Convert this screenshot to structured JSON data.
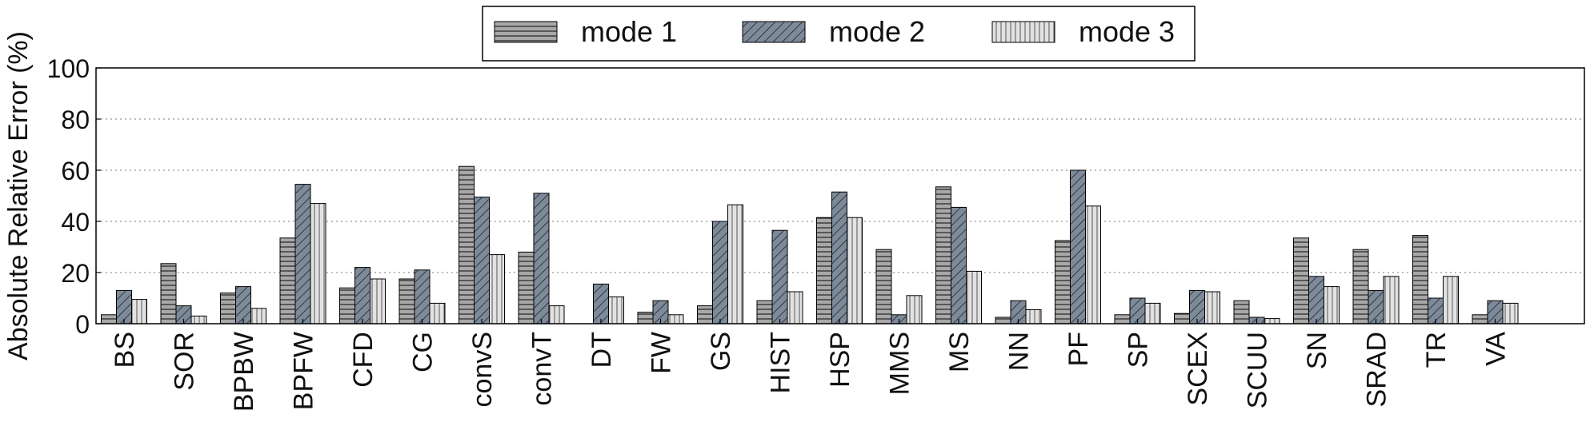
{
  "chart_data": {
    "type": "bar",
    "title": "",
    "xlabel": "",
    "ylabel": "Absolute Relative Error (%)",
    "ylim": [
      0,
      100
    ],
    "yticks": [
      0,
      20,
      40,
      60,
      80,
      100
    ],
    "grid": true,
    "legend_position": "top-center",
    "categories": [
      "BS",
      "SOR",
      "BPBW",
      "BPFW",
      "CFD",
      "CG",
      "convS",
      "convT",
      "DT",
      "FW",
      "GS",
      "HIST",
      "HSP",
      "MMS",
      "MS",
      "NN",
      "PF",
      "SP",
      "SCEX",
      "SCUU",
      "SN",
      "SRAD",
      "TR",
      "VA"
    ],
    "series": [
      {
        "name": "mode 1",
        "color": "#a8a8a8",
        "pattern": "horizontal-hatch",
        "values": [
          3.5,
          23.5,
          12,
          33.5,
          14,
          17.5,
          61.5,
          28,
          0,
          4.5,
          7,
          9,
          41.5,
          29,
          53.5,
          2.5,
          32.5,
          3.5,
          4,
          9,
          33.5,
          29,
          34.5,
          3.5
        ]
      },
      {
        "name": "mode 2",
        "color": "#7d8a9a",
        "pattern": "diagonal-hatch",
        "values": [
          13,
          7,
          14.5,
          54.5,
          22,
          21,
          49.5,
          51,
          15.5,
          9,
          40,
          36.5,
          51.5,
          3.5,
          45.5,
          9,
          60,
          10,
          13,
          2.5,
          18.5,
          13,
          10,
          9
        ]
      },
      {
        "name": "mode 3",
        "color": "#e2e2e2",
        "pattern": "vertical-hatch",
        "values": [
          9.5,
          3,
          6,
          47,
          17.5,
          8,
          27,
          7,
          10.5,
          3.5,
          46.5,
          12.5,
          41.5,
          11,
          20.5,
          5.5,
          46,
          8,
          12.5,
          2,
          14.5,
          18.5,
          18.5,
          8
        ]
      }
    ]
  }
}
